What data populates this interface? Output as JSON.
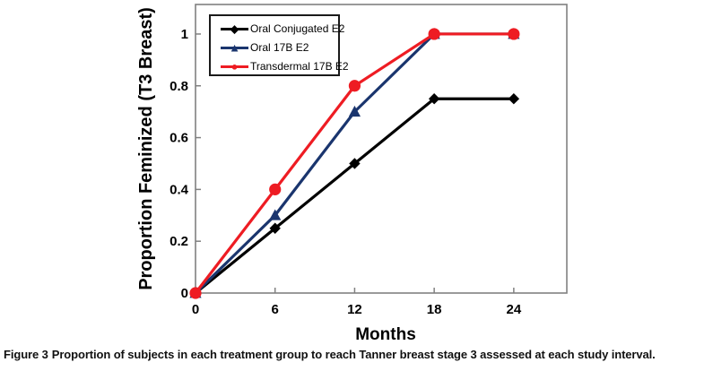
{
  "figure": {
    "caption_label": "Figure 3",
    "caption_text": "Proportion of subjects in each treatment group to reach Tanner breast stage 3 assessed at each study interval."
  },
  "chart_data": {
    "type": "line",
    "title": "",
    "xlabel": "Months",
    "ylabel": "Proportion Feminized (T3 Breast)",
    "x": [
      0,
      6,
      12,
      18,
      24
    ],
    "series": [
      {
        "name": "Oral Conjugated E2",
        "color": "#000000",
        "marker": "diamond",
        "values": [
          0,
          0.25,
          0.5,
          0.75,
          0.75
        ]
      },
      {
        "name": "Oral 17B E2",
        "color": "#1a356e",
        "marker": "triangle",
        "values": [
          0,
          0.3,
          0.7,
          1.0,
          1.0
        ]
      },
      {
        "name": "Transdermal 17B E2",
        "color": "#ee1c23",
        "marker": "circle",
        "values": [
          0,
          0.4,
          0.8,
          1.0,
          1.0
        ]
      }
    ],
    "xticks": [
      "0",
      "6",
      "12",
      "18",
      "24"
    ],
    "xtick_values": [
      0,
      6,
      12,
      18,
      24
    ],
    "yticks": [
      "0",
      "0.2",
      "0.4",
      "0.6",
      "0.8",
      "1"
    ],
    "ytick_values": [
      0,
      0.2,
      0.4,
      0.6,
      0.8,
      1
    ],
    "xlim": [
      0,
      28
    ],
    "ylim": [
      0,
      1.114
    ],
    "grid": false,
    "legend_position": "top-left",
    "axis_color": "#808080"
  }
}
